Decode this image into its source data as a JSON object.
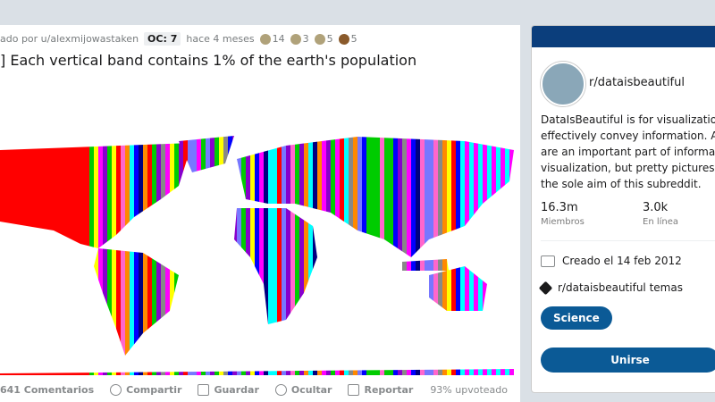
{
  "post": {
    "author": "ado por u/alexmijowastaken",
    "oc": "OC: 7",
    "time": "hace 4 meses",
    "awards": [
      "14",
      "3",
      "5",
      "5"
    ],
    "title": "] Each vertical band contains 1% of the earth's population",
    "actions": {
      "comments": "641 Comentarios",
      "share": "Compartir",
      "save": "Guardar",
      "hide": "Ocultar",
      "report": "Reportar"
    },
    "upvoted": "93% upvoteado"
  },
  "sidebar": {
    "name": "r/dataisbeautiful",
    "description": [
      "DataIsBeautiful is for visualizatio",
      "effectively convey information. Ae",
      "are an important part of informatio",
      "visualization, but pretty pictures a",
      "the sole aim of this subreddit."
    ],
    "members": "16.3m",
    "members_label": "Miembros",
    "online": "3.0k",
    "online_label": "En línea",
    "created": "Creado el 14 feb 2012",
    "topics": "r/dataisbeautiful temas",
    "tag": "Science",
    "join": "Unirse"
  }
}
